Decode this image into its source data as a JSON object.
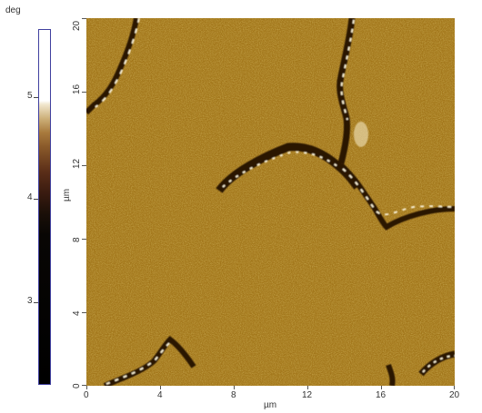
{
  "colorbar": {
    "unit": "deg",
    "ticks": [
      "5",
      "4",
      "3"
    ]
  },
  "image": {
    "x_unit": "µm",
    "y_unit": "µm",
    "x_ticks": [
      "0",
      "4",
      "8",
      "12",
      "16",
      "20"
    ],
    "y_ticks": [
      "20",
      "16",
      "12",
      "8",
      "4",
      "0"
    ]
  },
  "colors": {
    "background_phase": "#a2761a",
    "boundary_dark": "#2a1606",
    "boundary_bright": "#f6ecd0"
  }
}
